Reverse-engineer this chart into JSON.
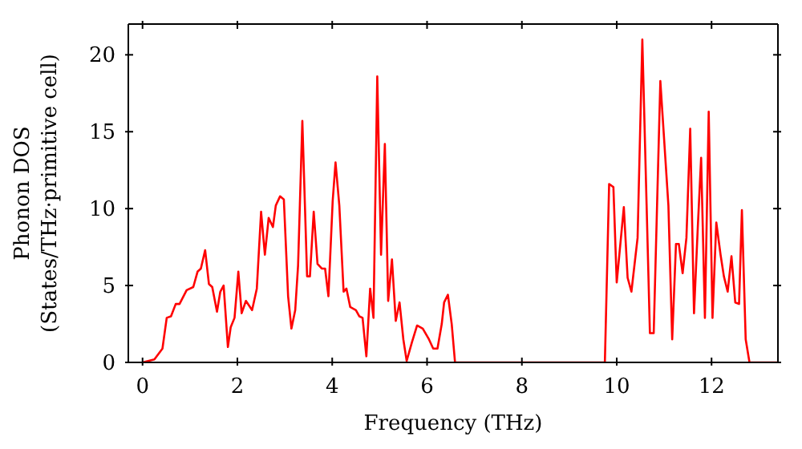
{
  "chart_data": {
    "type": "line",
    "xlabel": "Frequency (THz)",
    "ylabel": "Phonon DOS\n(States/THz·primitive cell)",
    "xlim": [
      -0.3,
      13.4
    ],
    "xticks": [
      0,
      2,
      4,
      6,
      8,
      10,
      12
    ],
    "ylim": [
      0,
      22
    ],
    "yticks": [
      0,
      5,
      10,
      15,
      20
    ],
    "marker": "none",
    "line_style": "solid",
    "series": [
      {
        "color": "#ff0000",
        "x": [
          0,
          0.25,
          0.42,
          0.51,
          0.6,
          0.7,
          0.78,
          0.93,
          1.07,
          1.16,
          1.23,
          1.32,
          1.4,
          1.47,
          1.57,
          1.64,
          1.71,
          1.8,
          1.86,
          1.94,
          2.02,
          2.09,
          2.18,
          2.31,
          2.41,
          2.5,
          2.58,
          2.66,
          2.75,
          2.81,
          2.9,
          2.98,
          3.07,
          3.14,
          3.22,
          3.28,
          3.37,
          3.47,
          3.53,
          3.61,
          3.69,
          3.78,
          3.85,
          3.92,
          4.01,
          4.07,
          4.15,
          4.24,
          4.3,
          4.38,
          4.5,
          4.57,
          4.64,
          4.72,
          4.8,
          4.87,
          4.95,
          5.03,
          5.11,
          5.18,
          5.26,
          5.34,
          5.42,
          5.5,
          5.57,
          5.68,
          5.79,
          5.91,
          6.04,
          6.13,
          6.22,
          6.31,
          6.36,
          6.44,
          6.52,
          6.59,
          9.75,
          9.84,
          9.93,
          10.0,
          10.15,
          10.23,
          10.31,
          10.44,
          10.54,
          10.7,
          10.78,
          10.92,
          11.09,
          11.17,
          11.25,
          11.31,
          11.39,
          11.47,
          11.55,
          11.63,
          11.71,
          11.78,
          11.86,
          11.94,
          12.02,
          12.1,
          12.19,
          12.26,
          12.34,
          12.42,
          12.5,
          12.58,
          12.64,
          12.72,
          12.8,
          13.4
        ],
        "values": [
          0,
          0.2,
          0.9,
          2.9,
          3.0,
          3.8,
          3.8,
          4.7,
          4.9,
          5.9,
          6.1,
          7.3,
          5.1,
          4.9,
          3.3,
          4.6,
          5.0,
          1.0,
          2.3,
          2.9,
          5.9,
          3.2,
          4.0,
          3.4,
          4.8,
          9.8,
          7.0,
          9.4,
          8.8,
          10.2,
          10.8,
          10.6,
          4.3,
          2.2,
          3.4,
          6.3,
          15.7,
          5.6,
          5.6,
          9.8,
          6.4,
          6.1,
          6.1,
          4.3,
          10.5,
          13.0,
          10.2,
          4.6,
          4.8,
          3.6,
          3.4,
          3.0,
          2.9,
          0.4,
          4.8,
          2.9,
          18.6,
          7.0,
          14.2,
          4.0,
          6.7,
          2.7,
          3.9,
          1.5,
          0.1,
          1.3,
          2.4,
          2.2,
          1.5,
          0.9,
          0.9,
          2.5,
          3.9,
          4.4,
          2.5,
          0,
          0,
          11.6,
          11.4,
          5.2,
          10.1,
          5.5,
          4.6,
          8.1,
          21.0,
          1.9,
          1.9,
          18.3,
          10.2,
          1.5,
          7.7,
          7.7,
          5.8,
          8.1,
          15.2,
          3.2,
          8.8,
          13.3,
          2.9,
          16.3,
          2.9,
          9.1,
          7.0,
          5.6,
          4.6,
          6.9,
          3.9,
          3.8,
          9.9,
          1.5,
          0,
          0
        ]
      }
    ]
  }
}
